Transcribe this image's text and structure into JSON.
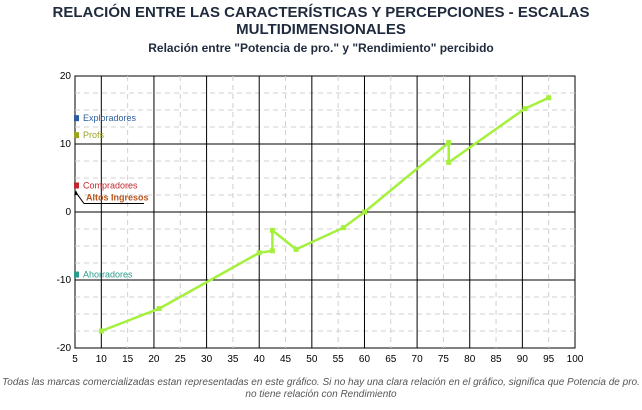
{
  "header": {
    "title_line1": "RELACIÓN ENTRE LAS CARACTERÍSTICAS Y PERCEPCIONES - ESCALAS",
    "title_line2": "MULTIDIMENSIONALES",
    "subtitle": "Relación entre \"Potencia de pro.\" y \"Rendimiento\" percibido"
  },
  "footer": {
    "note": "Todas las marcas comercializadas estan representadas en este gráfico. Si no hay una clara relación en el gráfico, significa que Potencia de pro. no tiene relación con Rendimiento"
  },
  "chart_data": {
    "type": "line",
    "xlim": [
      5,
      100
    ],
    "ylim": [
      -20,
      20
    ],
    "x_ticks": [
      5,
      10,
      15,
      20,
      25,
      30,
      35,
      40,
      45,
      50,
      55,
      60,
      65,
      70,
      75,
      80,
      85,
      90,
      95,
      100
    ],
    "y_ticks": [
      -20,
      -10,
      0,
      10,
      20
    ],
    "grid": "on",
    "series": [
      {
        "color": "#a4f03c",
        "points": [
          [
            10,
            -17.5
          ],
          [
            21,
            -14.2
          ],
          [
            40,
            -6.0
          ],
          [
            42.5,
            -5.7
          ],
          [
            42.5,
            -2.7
          ],
          [
            47,
            -5.5
          ],
          [
            56,
            -2.3
          ],
          [
            60,
            0
          ],
          [
            76,
            10.2
          ],
          [
            76,
            7.3
          ],
          [
            90.5,
            15.2
          ],
          [
            95,
            16.8
          ]
        ]
      }
    ],
    "annotations": [
      {
        "label": "Exploradores",
        "x": 5,
        "y": 13.8,
        "color": "#2b5c9e"
      },
      {
        "label": "Profs",
        "x": 5,
        "y": 11.3,
        "color": "#9aa41e"
      },
      {
        "label": "Compradores",
        "x": 5,
        "y": 3.9,
        "color": "#c0272d"
      },
      {
        "label": "Altos Ingresos",
        "x": 5,
        "y": 3.3,
        "color": "#b8541c"
      },
      {
        "label": "Ahorradores",
        "x": 5,
        "y": -9.2,
        "color": "#2a9c8a"
      }
    ]
  }
}
